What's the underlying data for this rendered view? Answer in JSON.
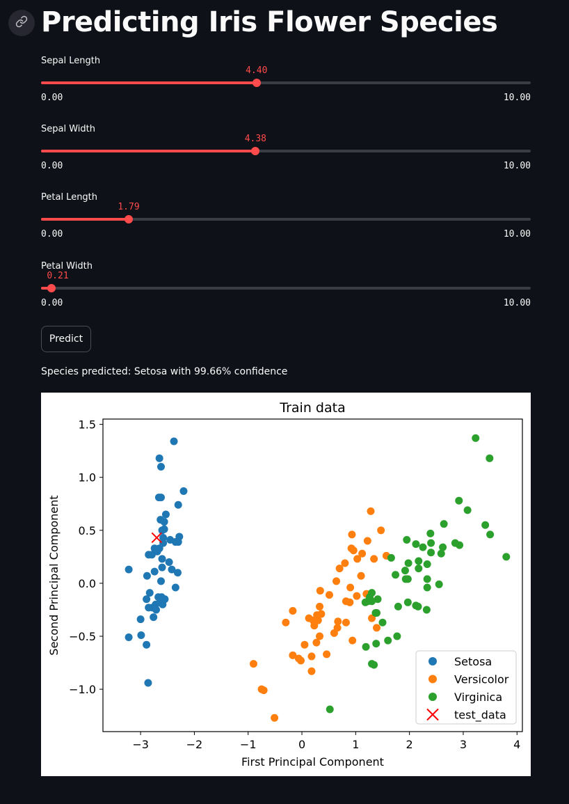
{
  "header": {
    "anchor_icon": "link-icon",
    "title": "Predicting Iris Flower Species"
  },
  "sliders": [
    {
      "label": "Sepal Length",
      "value": 4.4,
      "value_text": "4.40",
      "min_text": "0.00",
      "max_text": "10.00",
      "min": 0,
      "max": 10
    },
    {
      "label": "Sepal Width",
      "value": 4.38,
      "value_text": "4.38",
      "min_text": "0.00",
      "max_text": "10.00",
      "min": 0,
      "max": 10
    },
    {
      "label": "Petal Length",
      "value": 1.79,
      "value_text": "1.79",
      "min_text": "0.00",
      "max_text": "10.00",
      "min": 0,
      "max": 10
    },
    {
      "label": "Petal Width",
      "value": 0.21,
      "value_text": "0.21",
      "min_text": "0.00",
      "max_text": "10.00",
      "min": 0,
      "max": 10
    }
  ],
  "predict_button": {
    "label": "Predict"
  },
  "result": {
    "text": "Species predicted: Setosa with 99.66% confidence"
  },
  "colors": {
    "background": "#0e1117",
    "accent": "#ff4b4b",
    "track": "#3b3d46",
    "setosa": "#1f77b4",
    "versicolor": "#ff7f0e",
    "virginica": "#2ca02c",
    "test": "#ff0000"
  },
  "chart_data": {
    "type": "scatter",
    "title": "Train data",
    "xlabel": "First Principal Component",
    "ylabel": "Second Principal Component",
    "xlim": [
      -3.7,
      4.1
    ],
    "ylim": [
      -1.4,
      1.55
    ],
    "xticks": [
      -3,
      -2,
      -1,
      0,
      1,
      2,
      3,
      4
    ],
    "yticks": [
      -1.0,
      -0.5,
      0.0,
      0.5,
      1.0,
      1.5
    ],
    "xtick_labels": [
      "−3",
      "−2",
      "−1",
      "0",
      "1",
      "2",
      "3",
      "4"
    ],
    "ytick_labels": [
      "−1.0",
      "−0.5",
      "0.0",
      "0.5",
      "1.0",
      "1.5"
    ],
    "legend_position": "bottom-right",
    "series": [
      {
        "name": "Setosa",
        "marker": "circle",
        "color": "#1f77b4",
        "points": [
          [
            -2.38,
            1.34
          ],
          [
            -2.65,
            1.18
          ],
          [
            -2.62,
            1.1
          ],
          [
            -2.2,
            0.87
          ],
          [
            -2.66,
            0.81
          ],
          [
            -2.62,
            0.81
          ],
          [
            -2.3,
            0.74
          ],
          [
            -2.63,
            0.6
          ],
          [
            -2.53,
            0.65
          ],
          [
            -2.56,
            0.58
          ],
          [
            -2.56,
            0.51
          ],
          [
            -2.6,
            0.5
          ],
          [
            -2.28,
            0.44
          ],
          [
            -2.58,
            0.43
          ],
          [
            -2.45,
            0.41
          ],
          [
            -2.58,
            0.38
          ],
          [
            -2.35,
            0.39
          ],
          [
            -2.3,
            0.39
          ],
          [
            -2.74,
            0.33
          ],
          [
            -2.65,
            0.33
          ],
          [
            -2.69,
            0.3
          ],
          [
            -2.85,
            0.27
          ],
          [
            -2.79,
            0.27
          ],
          [
            -2.6,
            0.23
          ],
          [
            -2.47,
            0.2
          ],
          [
            -2.6,
            0.15
          ],
          [
            -2.42,
            0.13
          ],
          [
            -2.74,
            0.11
          ],
          [
            -2.31,
            0.1
          ],
          [
            -2.88,
            0.07
          ],
          [
            -3.22,
            0.13
          ],
          [
            -2.62,
            0.02
          ],
          [
            -2.35,
            -0.04
          ],
          [
            -2.83,
            -0.09
          ],
          [
            -2.67,
            -0.13
          ],
          [
            -2.61,
            -0.13
          ],
          [
            -2.55,
            -0.15
          ],
          [
            -2.63,
            -0.16
          ],
          [
            -2.89,
            -0.15
          ],
          [
            -2.72,
            -0.2
          ],
          [
            -2.59,
            -0.2
          ],
          [
            -2.78,
            -0.23
          ],
          [
            -2.85,
            -0.23
          ],
          [
            -2.71,
            -0.25
          ],
          [
            -2.76,
            -0.32
          ],
          [
            -3.0,
            -0.34
          ],
          [
            -2.99,
            -0.49
          ],
          [
            -3.22,
            -0.51
          ],
          [
            -2.89,
            -0.58
          ],
          [
            -2.86,
            -0.94
          ]
        ]
      },
      {
        "name": "Versicolor",
        "marker": "circle",
        "color": "#ff7f0e",
        "points": [
          [
            1.28,
            0.68
          ],
          [
            1.47,
            0.5
          ],
          [
            0.93,
            0.46
          ],
          [
            1.22,
            0.4
          ],
          [
            0.92,
            0.33
          ],
          [
            0.96,
            0.31
          ],
          [
            1.12,
            0.28
          ],
          [
            1.57,
            0.26
          ],
          [
            1.03,
            0.23
          ],
          [
            1.34,
            0.23
          ],
          [
            0.8,
            0.19
          ],
          [
            0.7,
            0.14
          ],
          [
            1.1,
            0.07
          ],
          [
            0.64,
            0.02
          ],
          [
            0.9,
            -0.04
          ],
          [
            0.34,
            -0.07
          ],
          [
            1.02,
            -0.12
          ],
          [
            1.2,
            -0.1
          ],
          [
            0.51,
            -0.11
          ],
          [
            0.82,
            -0.17
          ],
          [
            0.89,
            -0.18
          ],
          [
            0.33,
            -0.22
          ],
          [
            0.13,
            -0.33
          ],
          [
            0.36,
            -0.29
          ],
          [
            -0.3,
            -0.37
          ],
          [
            0.28,
            -0.3
          ],
          [
            0.21,
            -0.35
          ],
          [
            0.3,
            -0.35
          ],
          [
            0.67,
            -0.36
          ],
          [
            0.82,
            -0.37
          ],
          [
            -0.17,
            -0.26
          ],
          [
            0.23,
            -0.4
          ],
          [
            0.66,
            -0.42
          ],
          [
            1.3,
            -0.33
          ],
          [
            1.39,
            -0.42
          ],
          [
            0.33,
            -0.5
          ],
          [
            0.6,
            -0.47
          ],
          [
            0.27,
            -0.56
          ],
          [
            0.94,
            -0.54
          ],
          [
            0.05,
            -0.58
          ],
          [
            0.46,
            -0.67
          ],
          [
            -0.17,
            -0.68
          ],
          [
            0.18,
            -0.69
          ],
          [
            -0.06,
            -0.71
          ],
          [
            -0.02,
            -0.73
          ],
          [
            -0.9,
            -0.76
          ],
          [
            0.18,
            -0.83
          ],
          [
            -0.75,
            -1.0
          ],
          [
            -0.71,
            -1.01
          ],
          [
            -0.51,
            -1.27
          ]
        ]
      },
      {
        "name": "Virginica",
        "marker": "circle",
        "color": "#2ca02c",
        "points": [
          [
            3.23,
            1.37
          ],
          [
            3.49,
            1.18
          ],
          [
            2.92,
            0.78
          ],
          [
            3.08,
            0.69
          ],
          [
            2.64,
            0.56
          ],
          [
            3.41,
            0.55
          ],
          [
            3.5,
            0.46
          ],
          [
            2.39,
            0.47
          ],
          [
            1.95,
            0.41
          ],
          [
            2.12,
            0.37
          ],
          [
            2.4,
            0.38
          ],
          [
            2.25,
            0.34
          ],
          [
            2.62,
            0.34
          ],
          [
            2.85,
            0.38
          ],
          [
            2.93,
            0.36
          ],
          [
            2.59,
            0.28
          ],
          [
            2.4,
            0.29
          ],
          [
            3.8,
            0.25
          ],
          [
            1.66,
            0.24
          ],
          [
            1.98,
            0.19
          ],
          [
            2.33,
            0.18
          ],
          [
            2.17,
            0.21
          ],
          [
            1.92,
            0.12
          ],
          [
            2.17,
            0.14
          ],
          [
            1.74,
            0.08
          ],
          [
            1.93,
            0.04
          ],
          [
            1.97,
            0.04
          ],
          [
            2.33,
            0.04
          ],
          [
            2.55,
            -0.01
          ],
          [
            1.41,
            -0.15
          ],
          [
            2.33,
            -0.04
          ],
          [
            1.3,
            -0.17
          ],
          [
            1.18,
            -0.18
          ],
          [
            1.23,
            -0.17
          ],
          [
            1.97,
            -0.18
          ],
          [
            1.79,
            -0.22
          ],
          [
            2.12,
            -0.21
          ],
          [
            2.16,
            -0.22
          ],
          [
            2.32,
            -0.25
          ],
          [
            1.39,
            -0.28
          ],
          [
            1.37,
            -0.28
          ],
          [
            1.3,
            -0.09
          ],
          [
            1.26,
            -0.13
          ],
          [
            1.5,
            -0.37
          ],
          [
            1.38,
            -0.57
          ],
          [
            1.6,
            -0.54
          ],
          [
            1.77,
            -0.5
          ],
          [
            1.19,
            -0.6
          ],
          [
            1.3,
            -0.76
          ],
          [
            1.34,
            -0.77
          ],
          [
            0.52,
            -1.19
          ]
        ]
      },
      {
        "name": "test_data",
        "marker": "x",
        "color": "#ff0000",
        "points": [
          [
            -2.7,
            0.43
          ]
        ]
      }
    ]
  }
}
